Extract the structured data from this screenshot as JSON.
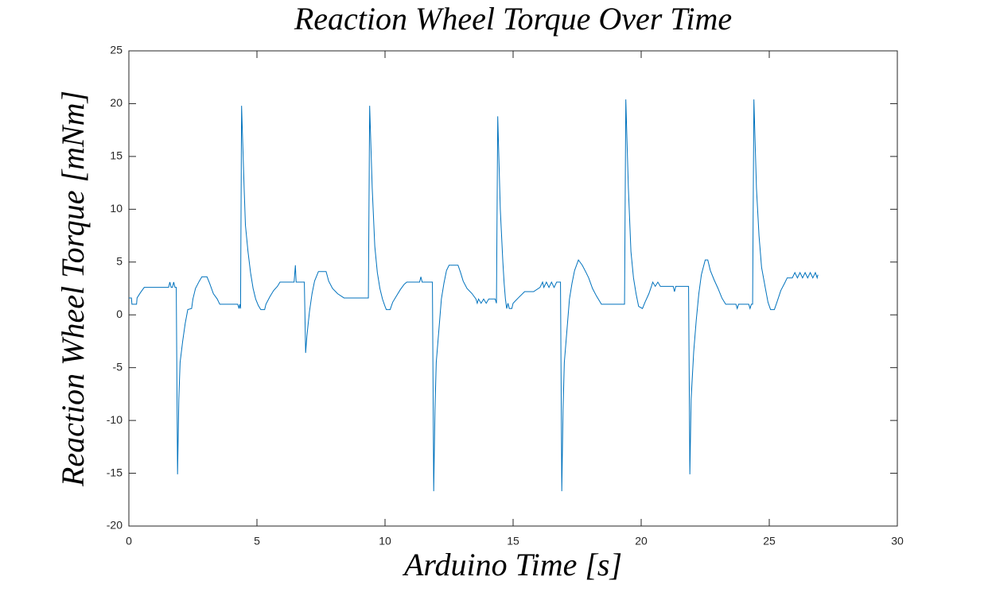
{
  "chart_data": {
    "type": "line",
    "title": "Reaction Wheel Torque Over Time",
    "x_label": "Arduino Time [s]",
    "y_label": "Reaction Wheel Torque [mNm]",
    "xlim": [
      0,
      30
    ],
    "xticks": [
      0,
      5,
      10,
      15,
      20,
      25,
      30
    ],
    "ylim": [
      -20,
      25
    ],
    "yticks": [
      -20,
      -15,
      -10,
      -5,
      0,
      5,
      10,
      15,
      20,
      25
    ],
    "grid": false,
    "series": [
      {
        "color": "#0072bd",
        "x": [
          0,
          0.1,
          0.12,
          0.3,
          0.32,
          0.45,
          0.6,
          1.55,
          1.6,
          1.65,
          1.7,
          1.75,
          1.8,
          1.85,
          1.9,
          1.95,
          2.0,
          2.1,
          2.2,
          2.3,
          2.45,
          2.5,
          2.6,
          2.75,
          2.85,
          3.05,
          3.15,
          3.3,
          3.45,
          3.55,
          4.25,
          4.3,
          4.33,
          4.36,
          4.4,
          4.5,
          4.55,
          4.65,
          4.75,
          4.85,
          4.95,
          5.05,
          5.15,
          5.3,
          5.35,
          5.5,
          5.65,
          5.8,
          5.9,
          6.45,
          6.5,
          6.53,
          6.85,
          6.9,
          6.95,
          7.05,
          7.15,
          7.25,
          7.4,
          7.7,
          7.8,
          7.95,
          8.15,
          8.4,
          9.35,
          9.4,
          9.5,
          9.6,
          9.7,
          9.8,
          9.9,
          10.0,
          10.05,
          10.2,
          10.3,
          10.45,
          10.6,
          10.75,
          10.85,
          11.35,
          11.4,
          11.45,
          11.85,
          11.9,
          11.95,
          12.0,
          12.1,
          12.2,
          12.3,
          12.4,
          12.5,
          12.85,
          12.95,
          13.05,
          13.2,
          13.4,
          13.55,
          13.6,
          13.65,
          13.75,
          13.85,
          13.95,
          14.05,
          14.3,
          14.35,
          14.4,
          14.5,
          14.6,
          14.65,
          14.7,
          14.75,
          14.8,
          14.85,
          14.95,
          15.0,
          15.2,
          15.45,
          15.8,
          16.05,
          16.15,
          16.2,
          16.3,
          16.4,
          16.5,
          16.6,
          16.7,
          16.85,
          16.9,
          16.95,
          17.0,
          17.1,
          17.2,
          17.3,
          17.4,
          17.55,
          17.7,
          17.85,
          17.95,
          18.1,
          18.25,
          18.45,
          19.35,
          19.4,
          19.5,
          19.6,
          19.7,
          19.8,
          19.9,
          20.05,
          20.15,
          20.3,
          20.4,
          20.45,
          20.55,
          20.65,
          20.75,
          21.25,
          21.3,
          21.35,
          21.85,
          21.9,
          21.95,
          22.05,
          22.15,
          22.25,
          22.35,
          22.5,
          22.6,
          22.7,
          22.85,
          23.0,
          23.15,
          23.3,
          23.7,
          23.75,
          23.8,
          24.2,
          24.25,
          24.3,
          24.35,
          24.4,
          24.5,
          24.6,
          24.7,
          24.85,
          24.95,
          25.05,
          25.2,
          25.3,
          25.45,
          25.6,
          25.7,
          25.9,
          26.0,
          26.1,
          26.2,
          26.3,
          26.4,
          26.5,
          26.6,
          26.7,
          26.8,
          26.87,
          26.9
        ],
        "values": [
          1.6,
          1.6,
          1.0,
          1.0,
          1.6,
          2.1,
          2.6,
          2.6,
          3.1,
          2.6,
          2.6,
          3.1,
          2.6,
          2.6,
          -15.1,
          -8,
          -4.5,
          -2.5,
          -0.8,
          0.5,
          0.6,
          1.5,
          2.5,
          3.2,
          3.6,
          3.6,
          3.0,
          2.0,
          1.5,
          1.0,
          1.0,
          0.6,
          1.0,
          0.6,
          19.8,
          12,
          8.5,
          6,
          4,
          2.5,
          1.5,
          0.9,
          0.5,
          0.5,
          1.0,
          1.7,
          2.3,
          2.7,
          3.1,
          3.1,
          4.7,
          3.1,
          3.1,
          -3.6,
          -2,
          0.3,
          2.0,
          3.2,
          4.1,
          4.1,
          3.2,
          2.5,
          2.0,
          1.6,
          1.6,
          19.8,
          12,
          6.5,
          4,
          2.5,
          1.5,
          0.8,
          0.5,
          0.5,
          1.2,
          1.8,
          2.4,
          2.9,
          3.1,
          3.1,
          3.6,
          3.1,
          3.1,
          -16.7,
          -9,
          -4.5,
          -1.5,
          1.5,
          3.0,
          4.2,
          4.7,
          4.7,
          4.0,
          3.2,
          2.5,
          2.0,
          1.5,
          1.1,
          1.5,
          1.1,
          1.5,
          1.1,
          1.5,
          1.5,
          1.1,
          18.8,
          10,
          5,
          3,
          1.5,
          0.6,
          1.1,
          0.6,
          0.6,
          1.1,
          1.6,
          2.2,
          2.2,
          2.6,
          3.1,
          2.6,
          3.1,
          2.6,
          3.1,
          2.6,
          3.1,
          3.1,
          -16.7,
          -9,
          -4.5,
          -1.5,
          1.5,
          3.0,
          4.2,
          5.2,
          4.7,
          4.0,
          3.5,
          2.5,
          1.8,
          1.0,
          1.0,
          20.4,
          12,
          6,
          3.5,
          2.0,
          0.8,
          0.6,
          1.2,
          2.0,
          2.7,
          3.1,
          2.7,
          3.1,
          2.7,
          2.7,
          2.2,
          2.7,
          2.7,
          -15.1,
          -8,
          -3.5,
          -0.5,
          2.0,
          3.8,
          5.2,
          5.2,
          4.2,
          3.3,
          2.5,
          1.6,
          1.0,
          1.0,
          0.6,
          1.0,
          1.0,
          0.6,
          1.0,
          1.0,
          20.4,
          12,
          7.5,
          4.5,
          2.5,
          1.2,
          0.5,
          0.5,
          1.2,
          2.3,
          3.0,
          3.5,
          3.5,
          4.0,
          3.5,
          4.0,
          3.5,
          4.0,
          3.5,
          4.0,
          3.5,
          4.0,
          3.5,
          3.8
        ]
      }
    ]
  }
}
